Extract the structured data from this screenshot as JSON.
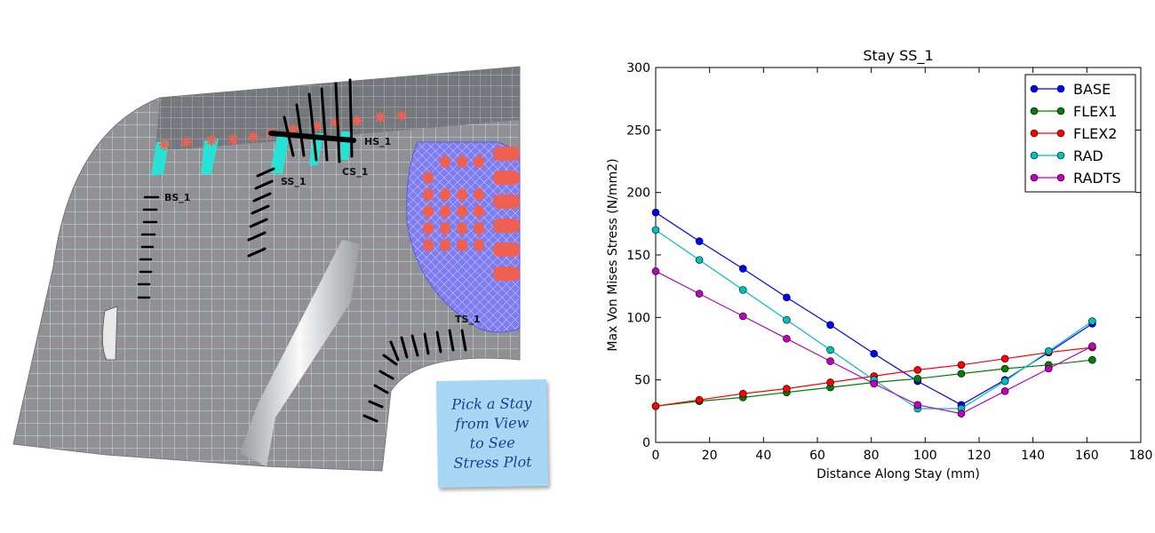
{
  "model_view": {
    "stays": [
      {
        "id": "hs",
        "label": "HS_1"
      },
      {
        "id": "cs",
        "label": "CS_1"
      },
      {
        "id": "ss",
        "label": "SS_1"
      },
      {
        "id": "bs",
        "label": "BS_1"
      },
      {
        "id": "ts",
        "label": "TS_1"
      }
    ],
    "colors": {
      "mesh_bg": "#8e9296",
      "mesh_line": "#e8e8e8",
      "mesh_red": "#e06a62",
      "stay_black": "#000000",
      "hotspot_red": "#f06050",
      "cyan": "#26e3d6",
      "blue_patch": "#7d7cf0"
    }
  },
  "sticky_note": {
    "text": "Pick a Stay\nfrom View\nto See\nStress Plot",
    "color": "#a6d8f5"
  },
  "chart_data": {
    "type": "line",
    "title": "Stay SS_1",
    "xlabel": "Distance Along Stay (mm)",
    "ylabel": "Max Von Mises Stress (N/mm2)",
    "xlim": [
      0,
      180
    ],
    "ylim": [
      0,
      300
    ],
    "xticks": [
      0,
      20,
      40,
      60,
      80,
      100,
      120,
      140,
      160,
      180
    ],
    "yticks": [
      0,
      50,
      100,
      150,
      200,
      250,
      300
    ],
    "grid": false,
    "legend_position": "top-right",
    "x": [
      0,
      16.2,
      32.4,
      48.6,
      64.8,
      81.0,
      97.2,
      113.4,
      129.6,
      145.8,
      162.0
    ],
    "series": [
      {
        "name": "BASE",
        "color": "#0000ff",
        "values": [
          184,
          161,
          139,
          116,
          94,
          71,
          49,
          30,
          50,
          72,
          95
        ]
      },
      {
        "name": "FLEX1",
        "color": "#008000",
        "values": [
          29,
          33,
          36,
          40,
          44,
          48,
          51,
          55,
          59,
          62,
          66
        ]
      },
      {
        "name": "FLEX2",
        "color": "#ff0000",
        "values": [
          29,
          34,
          39,
          43,
          48,
          53,
          58,
          62,
          67,
          72,
          76
        ]
      },
      {
        "name": "RAD",
        "color": "#00bfbf",
        "values": [
          170,
          146,
          122,
          98,
          74,
          50,
          27,
          27,
          49,
          73,
          97
        ]
      },
      {
        "name": "RADTS",
        "color": "#bf00bf",
        "values": [
          137,
          119,
          101,
          83,
          65,
          47,
          30,
          23,
          41,
          59,
          77
        ]
      }
    ]
  }
}
